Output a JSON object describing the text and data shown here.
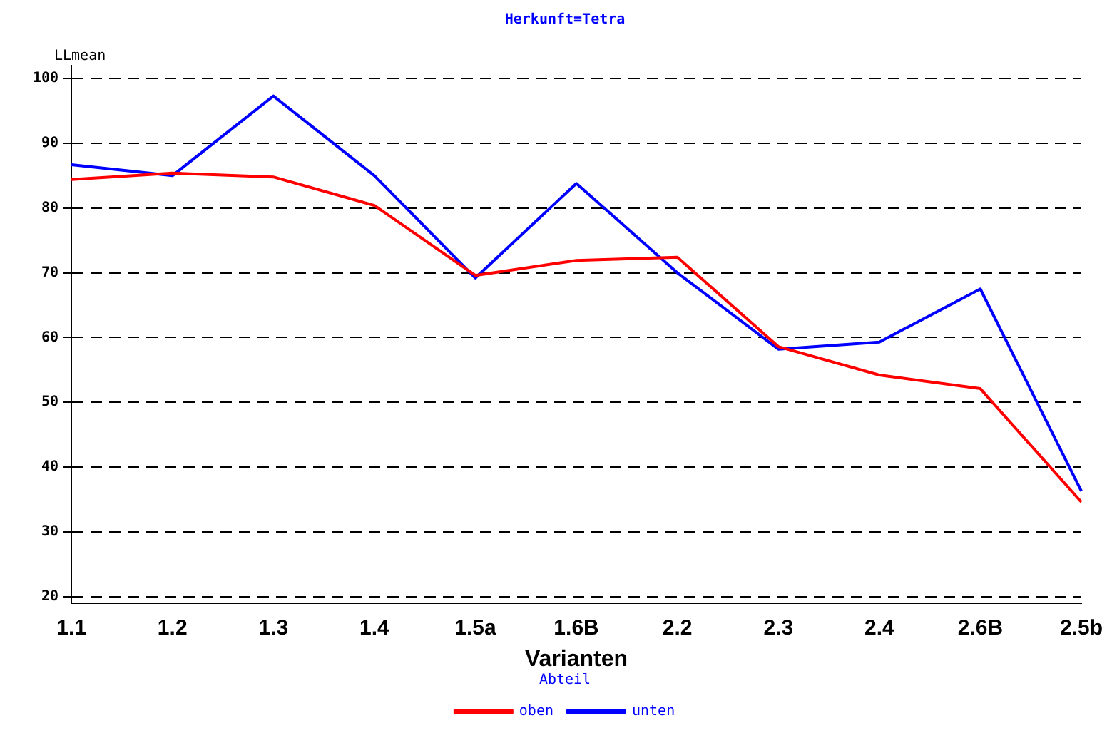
{
  "chart_data": {
    "type": "line",
    "title": "Herkunft=Tetra",
    "xlabel": "Varianten",
    "ylabel": "LLmean",
    "legend_title": "Abteil",
    "categories": [
      "1.1",
      "1.2",
      "1.3",
      "1.4",
      "1.5a",
      "1.6B",
      "2.2",
      "2.3",
      "2.4",
      "2.6B",
      "2.5b"
    ],
    "series": [
      {
        "name": "oben",
        "color": "#ff0000",
        "values": [
          84.4,
          85.4,
          84.8,
          80.4,
          69.6,
          71.9,
          72.4,
          58.6,
          54.2,
          52.1,
          34.6
        ]
      },
      {
        "name": "unten",
        "color": "#0000ff",
        "values": [
          86.7,
          85.0,
          97.3,
          85.0,
          69.2,
          83.8,
          70.0,
          58.2,
          59.3,
          67.5,
          36.3
        ]
      }
    ],
    "ylim": [
      19,
      102
    ],
    "yticks": [
      20,
      30,
      40,
      50,
      60,
      70,
      80,
      90,
      100
    ],
    "grid": "y",
    "line_style": "solid",
    "marker": "none",
    "legend": "bottom"
  }
}
